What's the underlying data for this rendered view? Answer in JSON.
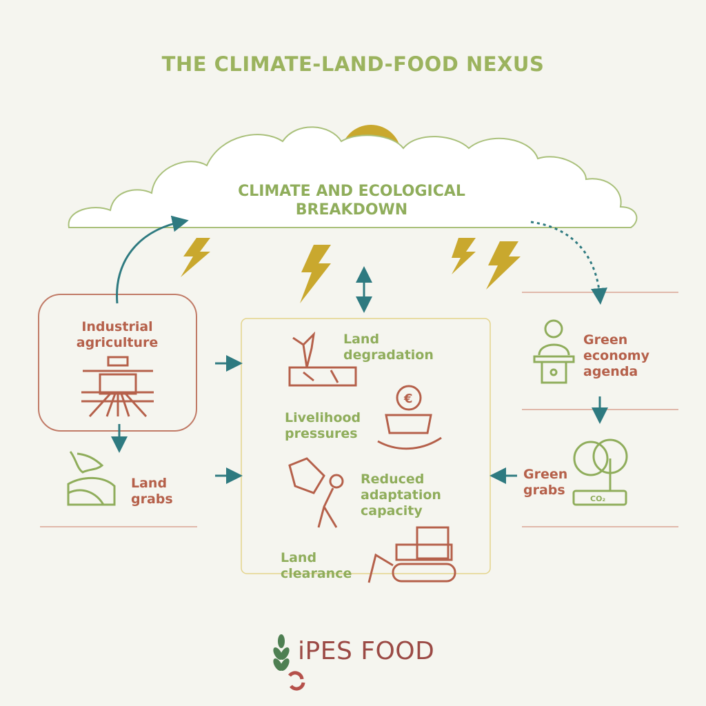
{
  "title": "THE CLIMATE-LAND-FOOD NEXUS",
  "cloud": {
    "label": "CLIMATE AND ECOLOGICAL BREAKDOWN"
  },
  "left": {
    "industrial_agriculture": "Industrial agriculture",
    "land_grabs": "Land grabs"
  },
  "center": {
    "land_degradation": "Land degradation",
    "livelihood_pressures": "Livelihood pressures",
    "reduced_adaptation_capacity": "Reduced adaptation capacity",
    "land_clearance": "Land clearance"
  },
  "right": {
    "green_economy_agenda": "Green economy agenda",
    "green_grabs": "Green grabs",
    "co2_label": "CO₂"
  },
  "logo": {
    "text": "iPES FOOD"
  },
  "colors": {
    "green": "#8fad5b",
    "rust": "#b5604a",
    "teal": "#2e7a80",
    "gold": "#c9a82e",
    "background": "#f5f5ef"
  }
}
